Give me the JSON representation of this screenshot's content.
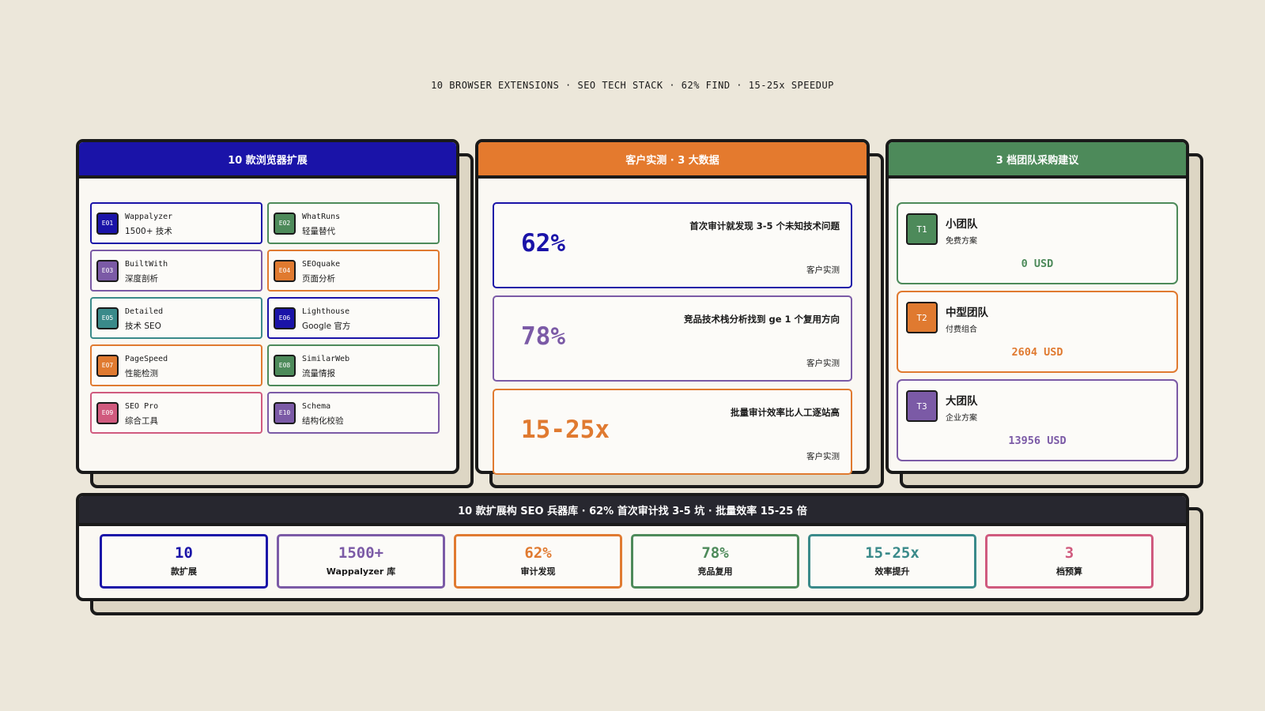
{
  "header": {
    "title": "10 BROWSER EXTENSIONS · SEO TECH STACK · 62% FIND · 15-25x SPEEDUP"
  },
  "extensions": {
    "title": "10 款浏览器扩展",
    "items": [
      {
        "code": "E01",
        "name": "Wappalyzer",
        "desc": "1500+ 技术"
      },
      {
        "code": "E02",
        "name": "WhatRuns",
        "desc": "轻量替代"
      },
      {
        "code": "E03",
        "name": "BuiltWith",
        "desc": "深度剖析"
      },
      {
        "code": "E04",
        "name": "SEOquake",
        "desc": "页面分析"
      },
      {
        "code": "E05",
        "name": "Detailed",
        "desc": "技术 SEO"
      },
      {
        "code": "E06",
        "name": "Lighthouse",
        "desc": "Google 官方"
      },
      {
        "code": "E07",
        "name": "PageSpeed",
        "desc": "性能检测"
      },
      {
        "code": "E08",
        "name": "SimilarWeb",
        "desc": "流量情报"
      },
      {
        "code": "E09",
        "name": "SEO Pro",
        "desc": "综合工具"
      },
      {
        "code": "E10",
        "name": "Schema",
        "desc": "结构化校验"
      }
    ]
  },
  "stats": {
    "title": "客户实测 · 3 大数据",
    "items": [
      {
        "value": "62%",
        "desc": "首次审计就发现 3-5 个未知技术问题",
        "note": "客户实测"
      },
      {
        "value": "78%",
        "desc": "竞品技术栈分析找到 ge 1 个复用方向",
        "note": "客户实测"
      },
      {
        "value": "15-25x",
        "desc": "批量审计效率比人工逐站高",
        "note": "客户实测"
      }
    ]
  },
  "tiers": {
    "title": "3 档团队采购建议",
    "items": [
      {
        "code": "T1",
        "name": "小团队",
        "desc": "免费方案",
        "price": "0 USD"
      },
      {
        "code": "T2",
        "name": "中型团队",
        "desc": "付费组合",
        "price": "2604 USD"
      },
      {
        "code": "T3",
        "name": "大团队",
        "desc": "企业方案",
        "price": "13956 USD"
      }
    ]
  },
  "summary": {
    "title": "10 款扩展构 SEO 兵器库 · 62% 首次审计找 3-5 坑 · 批量效率 15-25 倍",
    "kpis": [
      {
        "value": "10",
        "label": "款扩展"
      },
      {
        "value": "1500+",
        "label": "Wappalyzer 库"
      },
      {
        "value": "62%",
        "label": "审计发现"
      },
      {
        "value": "78%",
        "label": "竞品复用"
      },
      {
        "value": "15-25x",
        "label": "效率提升"
      },
      {
        "value": "3",
        "label": "档预算"
      }
    ]
  }
}
